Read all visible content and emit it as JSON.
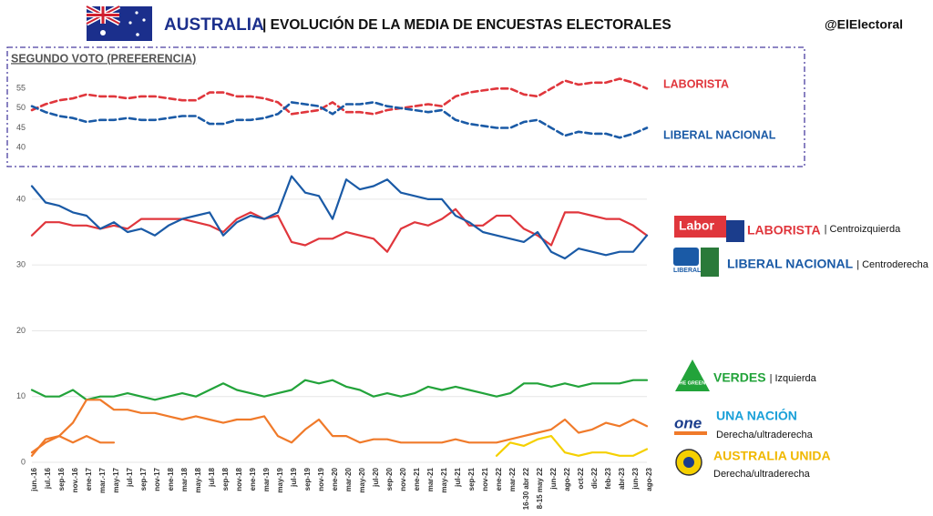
{
  "header": {
    "country": "AUSTRALIA",
    "title": "| EVOLUCIÓN DE LA MEDIA DE ENCUESTAS ELECTORALES",
    "handle": "@ElElectoral"
  },
  "chart_data": [
    {
      "type": "line",
      "title": "SEGUNDO VOTO (PREFERENCIA)",
      "dashed": true,
      "grid": false,
      "ylim": [
        37,
        59
      ],
      "yticks": [
        40,
        45,
        50,
        55
      ],
      "series": [
        {
          "name": "LABORISTA",
          "color": "#e0363c",
          "values": [
            49.5,
            51,
            52,
            52.5,
            53.5,
            53,
            53,
            52.5,
            53,
            53,
            52.5,
            52,
            52,
            54,
            54,
            53,
            53,
            52.5,
            51.5,
            48.5,
            49,
            49.5,
            51.5,
            49,
            49,
            48.5,
            49.5,
            50,
            50.5,
            51,
            50.5,
            53,
            54,
            54.5,
            55,
            55,
            53.5,
            53,
            55,
            57,
            56,
            56.5,
            56.5,
            57.5,
            56.5,
            55
          ]
        },
        {
          "name": "LIBERAL NACIONAL",
          "color": "#1a5aa6",
          "values": [
            50.5,
            49,
            48,
            47.5,
            46.5,
            47,
            47,
            47.5,
            47,
            47,
            47.5,
            48,
            48,
            46,
            46,
            47,
            47,
            47.5,
            48.5,
            51.5,
            51,
            50.5,
            48.5,
            51,
            51,
            51.5,
            50.5,
            50,
            49.5,
            49,
            49.5,
            47,
            46,
            45.5,
            45,
            45,
            46.5,
            47,
            45,
            43,
            44,
            43.5,
            43.5,
            42.5,
            43.5,
            45
          ]
        }
      ]
    },
    {
      "type": "line",
      "dashed": false,
      "grid": true,
      "ylim": [
        0,
        44
      ],
      "yticks": [
        0,
        10,
        20,
        30,
        40
      ],
      "categories": [
        "jun.-16",
        "jul.-16",
        "sep-16",
        "nov.-16",
        "ene-17",
        "mar.-17",
        "may-17",
        "jul-17",
        "sep-17",
        "nov-17",
        "ene-18",
        "mar-18",
        "may-18",
        "jul-18",
        "sep-18",
        "nov-18",
        "ene-19",
        "mar-19",
        "may-19",
        "jul-19",
        "sep-19",
        "nov-19",
        "ene-20",
        "mar-20",
        "may-20",
        "jul-20",
        "sep-20",
        "nov-20",
        "ene-21",
        "mar-21",
        "may-21",
        "jul-21",
        "sep-21",
        "nov-21",
        "ene-22",
        "mar-22",
        "16-30 abr 22",
        "8-15 may 22",
        "jun-22",
        "ago-22",
        "oct-22",
        "dic-22",
        "feb-23",
        "abr-23",
        "jun-23",
        "ago-23"
      ],
      "series": [
        {
          "name": "LABORISTA",
          "description": "| Centroizquierda",
          "logo": "Labor",
          "color": "#e0363c",
          "values": [
            34.5,
            36.5,
            36.5,
            36,
            36,
            35.5,
            36,
            35.5,
            37,
            37,
            37,
            37,
            36.5,
            36,
            35,
            37,
            38,
            37,
            37.5,
            33.5,
            33,
            34,
            34,
            35,
            34.5,
            34,
            32,
            35.5,
            36.5,
            36,
            37,
            38.5,
            36,
            36,
            37.5,
            37.5,
            35.5,
            34.5,
            33,
            38,
            38,
            37.5,
            37,
            37,
            36,
            34.5
          ]
        },
        {
          "name": "LIBERAL NACIONAL",
          "description": "| Centroderecha",
          "logo": "LIBERAL",
          "color": "#1a5aa6",
          "values": [
            42,
            39.5,
            39,
            38,
            37.5,
            35.5,
            36.5,
            35,
            35.5,
            34.5,
            36,
            37,
            37.5,
            38,
            34.5,
            36.5,
            37.5,
            37,
            38,
            43.5,
            41,
            40.5,
            37,
            43,
            41.5,
            42,
            43,
            41,
            40.5,
            40,
            40,
            37.5,
            36.5,
            35,
            34.5,
            34,
            33.5,
            35,
            32,
            31,
            32.5,
            32,
            31.5,
            32,
            32,
            34.5
          ]
        },
        {
          "name": "VERDES",
          "description": "| Izquierda",
          "logo": "THE GREENS",
          "color": "#22a33a",
          "values": [
            11,
            10,
            10,
            11,
            9.5,
            10,
            10,
            10.5,
            10,
            9.5,
            10,
            10.5,
            10,
            11,
            12,
            11,
            10.5,
            10,
            10.5,
            11,
            12.5,
            12,
            12.5,
            11.5,
            11,
            10,
            10.5,
            10,
            10.5,
            11.5,
            11,
            11.5,
            11,
            10.5,
            10,
            10.5,
            12,
            12,
            11.5,
            12,
            11.5,
            12,
            12,
            12,
            12.5,
            12.5
          ]
        },
        {
          "name": "UNA NACIÓN",
          "description": "Derecha/ultraderecha",
          "logo": "one",
          "color": "#f07a2a",
          "label_color": "#1aa0d8",
          "values": [
            1.5,
            3,
            4,
            6,
            9.5,
            9.5,
            8,
            8,
            7.5,
            7.5,
            7,
            6.5,
            7,
            6.5,
            6,
            6.5,
            6.5,
            7,
            4,
            3,
            5,
            6.5,
            4,
            4,
            3,
            3.5,
            3.5,
            3,
            3,
            3,
            3,
            3.5,
            3,
            3,
            3,
            3.5,
            4,
            4.5,
            5,
            6.5,
            4.5,
            5,
            6,
            5.5,
            6.5,
            5.5
          ]
        },
        {
          "color": "#f07a2a",
          "values": [
            1,
            3.5,
            4,
            3,
            4,
            3,
            3,
            null,
            null,
            null,
            null,
            null,
            null,
            null,
            null,
            null,
            null,
            null,
            null,
            null,
            null,
            null,
            null,
            null,
            null,
            null,
            null,
            null,
            null,
            null,
            null,
            null,
            null,
            null,
            null,
            null,
            null,
            null,
            null,
            null,
            null,
            null,
            null,
            null,
            null,
            null
          ]
        },
        {
          "name": "AUSTRALIA UNIDA",
          "description": "Derecha/ultraderecha",
          "color": "#f5d000",
          "label_color": "#f0b800",
          "values": [
            null,
            null,
            null,
            null,
            null,
            null,
            null,
            null,
            null,
            null,
            null,
            null,
            null,
            null,
            null,
            null,
            null,
            null,
            null,
            null,
            null,
            null,
            null,
            null,
            null,
            null,
            null,
            null,
            null,
            null,
            null,
            null,
            null,
            null,
            1,
            3,
            2.5,
            3.5,
            4,
            1.5,
            1,
            1.5,
            1.5,
            1,
            1,
            2
          ]
        }
      ]
    }
  ]
}
